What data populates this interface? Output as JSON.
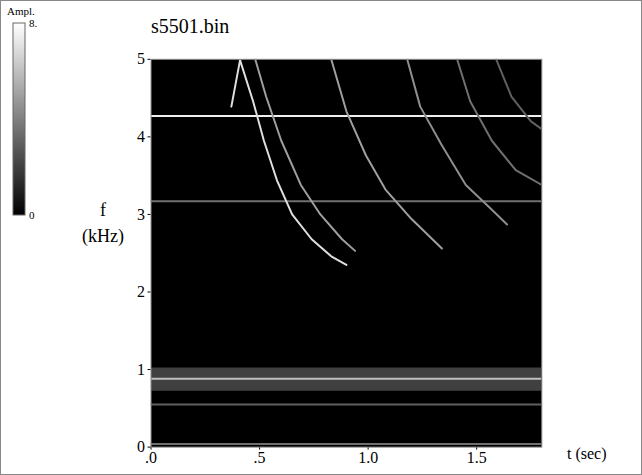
{
  "chart_data": {
    "type": "line",
    "title": "s5501.bin",
    "x_label": "t (sec)",
    "y_label": "f (kHz)",
    "xlim": [
      0,
      1.8
    ],
    "ylim": [
      0,
      5
    ],
    "xticks": [
      {
        "value": 0,
        "label": ".0"
      },
      {
        "value": 0.5,
        "label": ".5"
      },
      {
        "value": 1,
        "label": "1.0"
      },
      {
        "value": 1.5,
        "label": "1.5"
      }
    ],
    "yticks": [
      0,
      1,
      2,
      3,
      4,
      5
    ],
    "grid": false,
    "colorbar": {
      "label": "Ampl.",
      "range": [
        0,
        8
      ],
      "ticks": [
        {
          "value": 8,
          "label": "8."
        },
        0
      ]
    },
    "bands": [
      {
        "low": 0.72,
        "high": 1.02,
        "amplitude": 4.5
      }
    ],
    "series": [
      {
        "amplitude": 7.5,
        "x": [
          0,
          1.8
        ],
        "values": [
          4.27,
          4.27
        ]
      },
      {
        "amplitude": 3.5,
        "x": [
          0,
          1.8
        ],
        "values": [
          3.17,
          3.17
        ]
      },
      {
        "amplitude": 6,
        "x": [
          0,
          1.8
        ],
        "values": [
          0.88,
          0.88
        ]
      },
      {
        "amplitude": 3,
        "x": [
          0,
          1.8
        ],
        "values": [
          0.55,
          0.55
        ]
      },
      {
        "amplitude": 3.5,
        "x": [
          0,
          1.8
        ],
        "values": [
          0.04,
          0.04
        ]
      },
      {
        "amplitude": 7,
        "x": [
          0.37,
          0.41,
          0.47,
          0.52,
          0.58,
          0.65,
          0.74,
          0.83,
          0.9
        ],
        "values": [
          4.39,
          4.99,
          4.46,
          3.95,
          3.44,
          3.0,
          2.68,
          2.46,
          2.35
        ]
      },
      {
        "amplitude": 5,
        "x": [
          0.48,
          0.53,
          0.6,
          0.69,
          0.78,
          0.88,
          0.94
        ],
        "values": [
          5.0,
          4.52,
          3.95,
          3.38,
          3.0,
          2.68,
          2.53
        ]
      },
      {
        "amplitude": 5,
        "x": [
          0.83,
          0.9,
          0.99,
          1.08,
          1.2,
          1.34
        ],
        "values": [
          5.0,
          4.33,
          3.76,
          3.32,
          2.94,
          2.56
        ]
      },
      {
        "amplitude": 4.5,
        "x": [
          1.18,
          1.24,
          1.34,
          1.45,
          1.57,
          1.64
        ],
        "values": [
          5.0,
          4.39,
          3.89,
          3.38,
          3.06,
          2.87
        ]
      },
      {
        "amplitude": 3.5,
        "x": [
          1.41,
          1.47,
          1.57,
          1.68,
          1.8
        ],
        "values": [
          5.0,
          4.46,
          3.95,
          3.57,
          3.38
        ]
      },
      {
        "amplitude": 3,
        "x": [
          1.59,
          1.66,
          1.75,
          1.8
        ],
        "values": [
          5.0,
          4.52,
          4.2,
          4.1
        ]
      }
    ]
  }
}
